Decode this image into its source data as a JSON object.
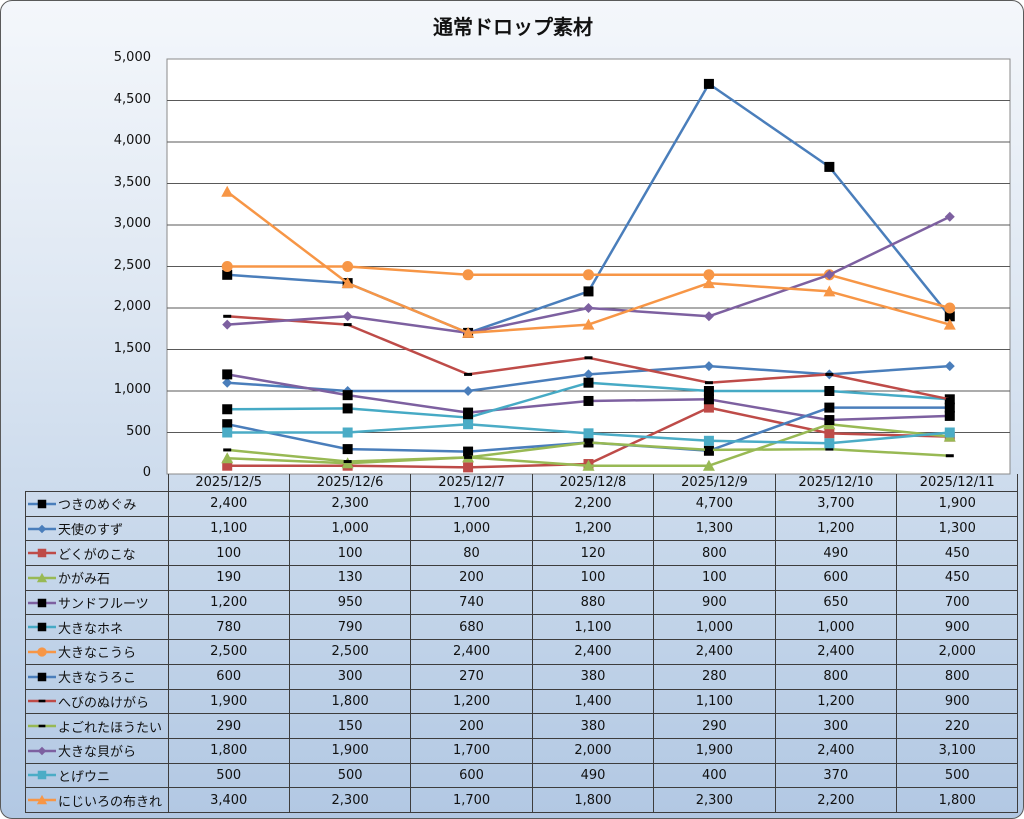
{
  "chart_data": {
    "type": "line",
    "title": "通常ドロップ素材",
    "xlabel": "",
    "ylabel": "",
    "ylim": [
      0,
      5000
    ],
    "yticks": [
      "0",
      "500",
      "1,000",
      "1,500",
      "2,000",
      "2,500",
      "3,000",
      "3,500",
      "4,000",
      "4,500",
      "5,000"
    ],
    "ytick_values": [
      0,
      500,
      1000,
      1500,
      2000,
      2500,
      3000,
      3500,
      4000,
      4500,
      5000
    ],
    "grid": true,
    "legend": "data-table",
    "categories": [
      "2025/12/5",
      "2025/12/6",
      "2025/12/7",
      "2025/12/8",
      "2025/12/9",
      "2025/12/10",
      "2025/12/11"
    ],
    "series": [
      {
        "name": "つきのめぐみ",
        "color": "#4a7ebb",
        "marker": "square",
        "marker_color": "#000000",
        "values": [
          2400,
          2300,
          1700,
          2200,
          4700,
          3700,
          1900
        ],
        "labels": [
          "2,400",
          "2,300",
          "1,700",
          "2,200",
          "4,700",
          "3,700",
          "1,900"
        ]
      },
      {
        "name": "天使のすず",
        "color": "#4a7ebb",
        "marker": "diamond",
        "marker_color": "#4a7ebb",
        "values": [
          1100,
          1000,
          1000,
          1200,
          1300,
          1200,
          1300
        ],
        "labels": [
          "1,100",
          "1,000",
          "1,000",
          "1,200",
          "1,300",
          "1,200",
          "1,300"
        ]
      },
      {
        "name": "どくがのこな",
        "color": "#be4b48",
        "marker": "square",
        "marker_color": "#be4b48",
        "values": [
          100,
          100,
          80,
          120,
          800,
          490,
          450
        ],
        "labels": [
          "100",
          "100",
          "80",
          "120",
          "800",
          "490",
          "450"
        ]
      },
      {
        "name": "かがみ石",
        "color": "#98b954",
        "marker": "triangle",
        "marker_color": "#98b954",
        "values": [
          190,
          130,
          200,
          100,
          100,
          600,
          450
        ],
        "labels": [
          "190",
          "130",
          "200",
          "100",
          "100",
          "600",
          "450"
        ]
      },
      {
        "name": "サンドフルーツ",
        "color": "#7d60a0",
        "marker": "square",
        "marker_color": "#000000",
        "values": [
          1200,
          950,
          740,
          880,
          900,
          650,
          700
        ],
        "labels": [
          "1,200",
          "950",
          "740",
          "880",
          "900",
          "650",
          "700"
        ]
      },
      {
        "name": "大きなホネ",
        "color": "#46aac5",
        "marker": "square",
        "marker_color": "#000000",
        "values": [
          780,
          790,
          680,
          1100,
          1000,
          1000,
          900
        ],
        "labels": [
          "780",
          "790",
          "680",
          "1,100",
          "1,000",
          "1,000",
          "900"
        ]
      },
      {
        "name": "大きなこうら",
        "color": "#f79646",
        "marker": "circle",
        "marker_color": "#f79646",
        "values": [
          2500,
          2500,
          2400,
          2400,
          2400,
          2400,
          2000
        ],
        "labels": [
          "2,500",
          "2,500",
          "2,400",
          "2,400",
          "2,400",
          "2,400",
          "2,000"
        ]
      },
      {
        "name": "大きなうろこ",
        "color": "#4a7ebb",
        "marker": "square",
        "marker_color": "#000000",
        "values": [
          600,
          300,
          270,
          380,
          280,
          800,
          800
        ],
        "labels": [
          "600",
          "300",
          "270",
          "380",
          "280",
          "800",
          "800"
        ]
      },
      {
        "name": "へびのぬけがら",
        "color": "#be4b48",
        "marker": "dash",
        "marker_color": "#000000",
        "values": [
          1900,
          1800,
          1200,
          1400,
          1100,
          1200,
          900
        ],
        "labels": [
          "1,900",
          "1,800",
          "1,200",
          "1,400",
          "1,100",
          "1,200",
          "900"
        ]
      },
      {
        "name": "よごれたほうたい",
        "color": "#98b954",
        "marker": "dash",
        "marker_color": "#000000",
        "values": [
          290,
          150,
          200,
          380,
          290,
          300,
          220
        ],
        "labels": [
          "290",
          "150",
          "200",
          "380",
          "290",
          "300",
          "220"
        ]
      },
      {
        "name": "大きな貝がら",
        "color": "#7d60a0",
        "marker": "diamond",
        "marker_color": "#7d60a0",
        "values": [
          1800,
          1900,
          1700,
          2000,
          1900,
          2400,
          3100
        ],
        "labels": [
          "1,800",
          "1,900",
          "1,700",
          "2,000",
          "1,900",
          "2,400",
          "3,100"
        ]
      },
      {
        "name": "とげウニ",
        "color": "#4bacc6",
        "marker": "square",
        "marker_color": "#4bacc6",
        "values": [
          500,
          500,
          600,
          490,
          400,
          370,
          500
        ],
        "labels": [
          "500",
          "500",
          "600",
          "490",
          "400",
          "370",
          "500"
        ]
      },
      {
        "name": "にじいろの布きれ",
        "color": "#f79646",
        "marker": "triangle",
        "marker_color": "#f79646",
        "values": [
          3400,
          2300,
          1700,
          1800,
          2300,
          2200,
          1800
        ],
        "labels": [
          "3,400",
          "2,300",
          "1,700",
          "1,800",
          "2,300",
          "2,200",
          "1,800"
        ]
      }
    ]
  }
}
